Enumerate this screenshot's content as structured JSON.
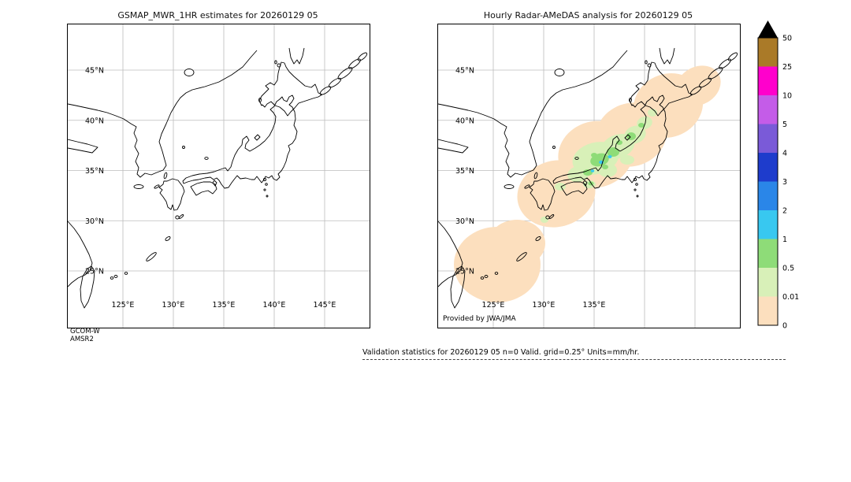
{
  "chart_data": {
    "type": "heatmap",
    "figure": "GSMaP vs Radar-AMeDAS hourly precipitation validation over Japan",
    "panels": [
      {
        "title": "GSMAP_MWR_1HR estimates for 20260129 05",
        "lat_ticks": [
          "45°N",
          "40°N",
          "35°N",
          "30°N",
          "25°N"
        ],
        "lon_ticks": [
          "125°E",
          "130°E",
          "135°E",
          "140°E",
          "145°E"
        ],
        "values": "no satellite estimates plotted (n=0)"
      },
      {
        "title": "Hourly Radar-AMeDAS analysis for 20260129 05",
        "lat_ticks": [
          "45°N",
          "40°N",
          "35°N",
          "30°N",
          "25°N"
        ],
        "lon_ticks": [
          "125°E",
          "130°E",
          "135°E"
        ],
        "values": "trace-to-light rain (0-0.5 mm/hr) band from Okinawa northeast along the Pacific side to Hokkaido; embedded 0.5-3 mm/hr cells over western and central Honshu"
      }
    ],
    "colorbar": {
      "units": "mm/hr",
      "bin_edges": [
        0,
        0.01,
        0.5,
        1,
        2,
        3,
        4,
        5,
        10,
        25,
        50
      ],
      "colors_bottom_to_top": [
        "#fcdfbe",
        "#d8f0b8",
        "#8edc78",
        "#38c8f0",
        "#2a86e8",
        "#1e3ccc",
        "#7a5ad8",
        "#c45ce8",
        "#ff00cc",
        "#aa7a28"
      ],
      "over_color": "#000000"
    },
    "stats": {
      "n": 0,
      "grid": "0.25°",
      "units": "mm/hr"
    }
  },
  "left_panel": {
    "title": "GSMAP_MWR_1HR estimates for 20260129 05",
    "credit_line1": "GCOM-W",
    "credit_line2": "AMSR2",
    "lat_labels": [
      {
        "text": "45°N",
        "deg": 45
      },
      {
        "text": "40°N",
        "deg": 40
      },
      {
        "text": "35°N",
        "deg": 35
      },
      {
        "text": "30°N",
        "deg": 30
      },
      {
        "text": "25°N",
        "deg": 25
      }
    ],
    "lon_labels": [
      {
        "text": "125°E",
        "deg": 125
      },
      {
        "text": "130°E",
        "deg": 130
      },
      {
        "text": "135°E",
        "deg": 135
      },
      {
        "text": "140°E",
        "deg": 140
      },
      {
        "text": "145°E",
        "deg": 145
      }
    ]
  },
  "right_panel": {
    "title": "Hourly Radar-AMeDAS analysis for 20260129 05",
    "credit": "Provided by JWA/JMA",
    "lat_labels": [
      {
        "text": "45°N",
        "deg": 45
      },
      {
        "text": "40°N",
        "deg": 40
      },
      {
        "text": "35°N",
        "deg": 35
      },
      {
        "text": "30°N",
        "deg": 30
      },
      {
        "text": "25°N",
        "deg": 25
      }
    ],
    "lon_labels": [
      {
        "text": "125°E",
        "deg": 125
      },
      {
        "text": "130°E",
        "deg": 130
      },
      {
        "text": "135°E",
        "deg": 135
      }
    ]
  },
  "colorbar": {
    "ticks": [
      "50",
      "25",
      "10",
      "5",
      "4",
      "3",
      "2",
      "1",
      "0.5",
      "0.01",
      "0"
    ],
    "segments_top_to_bottom": [
      "#aa7a28",
      "#ff00cc",
      "#c45ce8",
      "#7a5ad8",
      "#1e3ccc",
      "#2a86e8",
      "#38c8f0",
      "#8edc78",
      "#d8f0b8",
      "#fcdfbe"
    ],
    "over_color": "#000000"
  },
  "caption": {
    "text": "Validation statistics for 20260129 05  n=0 Valid. grid=0.25° Units=mm/hr."
  },
  "map": {
    "lon_grid": [
      125,
      130,
      135,
      140,
      145
    ],
    "lat_grid": [
      25,
      30,
      35,
      40,
      45
    ],
    "grid_color": "#bcbcbc",
    "coast_color": "#000000"
  },
  "precip_colors": {
    "trace": "#fcdfbe",
    "light": "#d8f0b8",
    "moderate": "#8edc78",
    "heavy": "#38c8f0"
  }
}
